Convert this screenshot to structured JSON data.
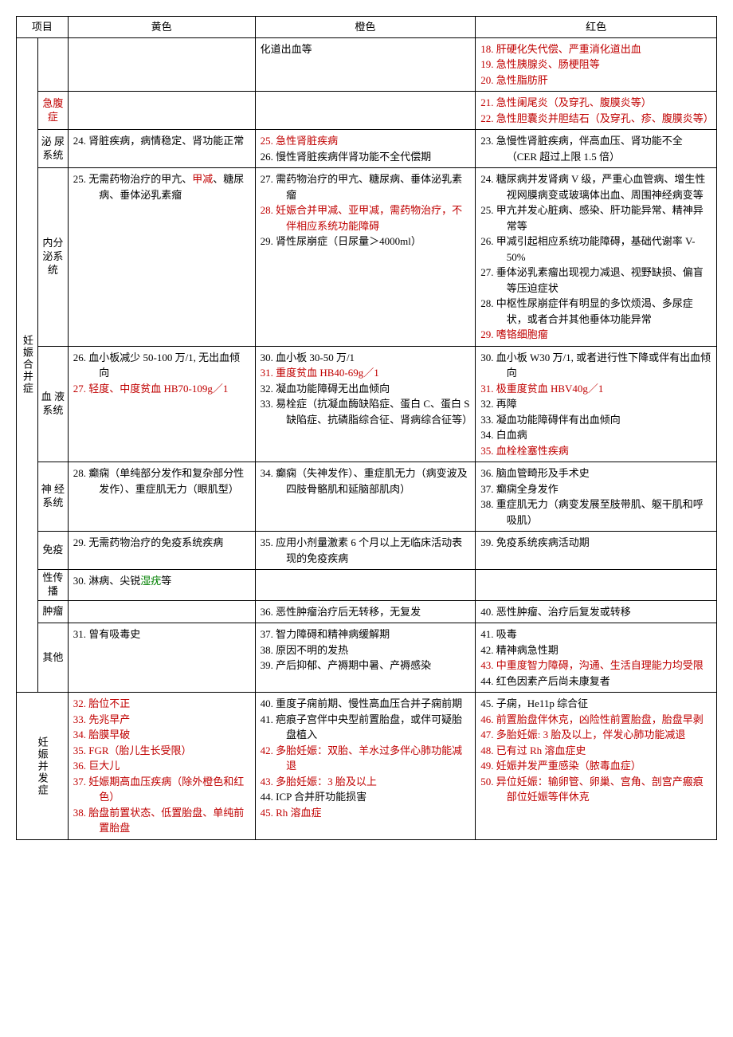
{
  "header": {
    "project": "项目",
    "yellow": "黄色",
    "orange": "橙色",
    "red": "红色"
  },
  "category1": {
    "label": "妊娠合并症",
    "digestive": {
      "sub": "",
      "orange": "化道出血等",
      "red": [
        "18. 肝硬化失代偿、严重消化道出血",
        "19. 急性胰腺炎、肠梗阻等",
        "20. 急性脂肪肝"
      ]
    },
    "acute_abdomen": {
      "sub": "急腹症",
      "red": [
        "21. 急性阑尾炎（及穿孔、腹膜炎等）",
        "22. 急性胆囊炎并胆结石（及穿孔、疹、腹膜炎等）"
      ]
    },
    "urinary": {
      "sub": "泌 尿系统",
      "yellow": "24. 肾脏疾病，病情稳定、肾功能正常",
      "orange": [
        "25. 急性肾脏疾病",
        "26. 慢性肾脏疾病伴肾功能不全代偿期"
      ],
      "red": "23. 急慢性肾脏疾病，伴高血压、肾功能不全（CER 超过上限 1.5 倍）"
    },
    "endocrine": {
      "sub": "内分泌系统",
      "yellow_p1": "25. 无需药物治疗的甲亢、",
      "yellow_p2": "甲减",
      "yellow_p3": "、糖尿病、垂体泌乳素瘤",
      "orange": [
        "27. 需药物治疗的甲亢、糖尿病、垂体泌乳素瘤",
        "28. 妊娠合并甲减、亚甲减，需药物治疗，不伴相应系统功能障碍",
        "29. 肾性尿崩症（日尿量＞4000ml）"
      ],
      "red": [
        "24. 糖尿病并发肾病 V 级，严重心血管病、增生性视网膜病变或玻璃体出血、周围神经病变等",
        "25. 甲亢并发心脏病、感染、肝功能异常、精神异常等",
        "26. 甲减引起相应系统功能障碍，基础代谢率 V-50%",
        "27. 垂体泌乳素瘤出现视力减退、视野缺损、偏盲等压迫症状",
        "28. 中枢性尿崩症伴有明显的多饮烦渴、多尿症状，或者合并其他垂体功能异常",
        "29. 嗜铬细胞瘤"
      ]
    },
    "blood": {
      "sub": "血 液系统",
      "yellow": [
        "26. 血小板减少 50-100 万/1, 无出血倾向",
        "27. 轻度、中度贫血 HB70-109g／1"
      ],
      "orange": [
        "30. 血小板 30-50 万/1",
        "31. 重度贫血 HB40-69g／1",
        "32. 凝血功能障碍无出血倾向",
        "33. 易栓症（抗凝血酶缺陷症、蛋白 C、蛋白 S 缺陷症、抗磷脂综合征、肾病综合征等）"
      ],
      "red": [
        "30. 血小板 W30 万/1, 或者进行性下降或伴有出血倾向",
        "31. 极重度贫血 HBV40g／1",
        "32. 再障",
        "33. 凝血功能障碍伴有出血倾向",
        "34. 白血病",
        "35. 血栓栓塞性疾病"
      ]
    },
    "nervous": {
      "sub": "神 经系统",
      "yellow": "28. 癫痫（单纯部分发作和复杂部分性发作）、重症肌无力（眼肌型）",
      "orange": "34. 癫痫（失神发作）、重症肌无力（病变波及四肢骨骼肌和延脑部肌肉）",
      "red": [
        "36. 脑血管畸形及手术史",
        "37. 癫痫全身发作",
        "38. 重症肌无力（病变发展至肢带肌、躯干肌和呼吸肌）"
      ]
    },
    "immune": {
      "sub": "免疫",
      "yellow": "29. 无需药物治疗的免疫系统疾病",
      "orange": "35. 应用小剂量激素 6 个月以上无临床活动表现的免疫疾病",
      "red": "39. 免疫系统疾病活动期"
    },
    "std": {
      "sub": "性传播",
      "yellow_p1": "30. 淋病、尖锐",
      "yellow_p2": "湿疣",
      "yellow_p3": "等"
    },
    "tumor": {
      "sub": "肿瘤",
      "orange": "36. 恶性肿瘤治疗后无转移，无复发",
      "red": "40. 恶性肿瘤、治疗后复发或转移"
    },
    "other": {
      "sub": "其他",
      "yellow": "31. 曾有吸毒史",
      "orange": [
        "37. 智力障碍和精神病缓解期",
        "38. 原因不明的发热",
        "39. 产后抑郁、产褥期中暑、产褥感染"
      ],
      "red": [
        "41. 吸毒",
        "42. 精神病急性期",
        "43. 中重度智力障碍，沟通、生活自理能力均受限",
        "44. 红色因素产后尚未康复者"
      ]
    }
  },
  "category2": {
    "label": "妊娠并发症",
    "sub": "",
    "yellow": [
      "32. 胎位不正",
      "33. 先兆早产",
      "34. 胎膜早破",
      "35. FGR（胎儿生长受限）",
      "36. 巨大儿",
      "37. 妊娠期高血压疾病（除外橙色和红色）",
      "38. 胎盘前置状态、低置胎盘、单纯前置胎盘"
    ],
    "orange": [
      "40. 重度子痫前期、慢性高血压合并子痫前期",
      "41. 疤痕子宫伴中央型前置胎盘，或伴可疑胎盘植入",
      "42. 多胎妊娠：双胎、羊水过多伴心肺功能减退",
      "43. 多胎妊娠：3 胎及以上",
      "44. ICP 合并肝功能损害",
      "45. Rh 溶血症"
    ],
    "red": [
      "45. 子痫，He11p 综合征",
      "46. 前置胎盘伴休克，凶险性前置胎盘，胎盘早剥",
      "47. 多胎妊娠: 3 胎及以上，伴发心肺功能减退",
      "48. 已有过 Rh 溶血症史",
      "49. 妊娠并发严重感染（脓毒血症）",
      "50. 异位妊娠：输卵管、卵巢、宫角、剖宫产瘢痕部位妊娠等伴休克"
    ]
  }
}
